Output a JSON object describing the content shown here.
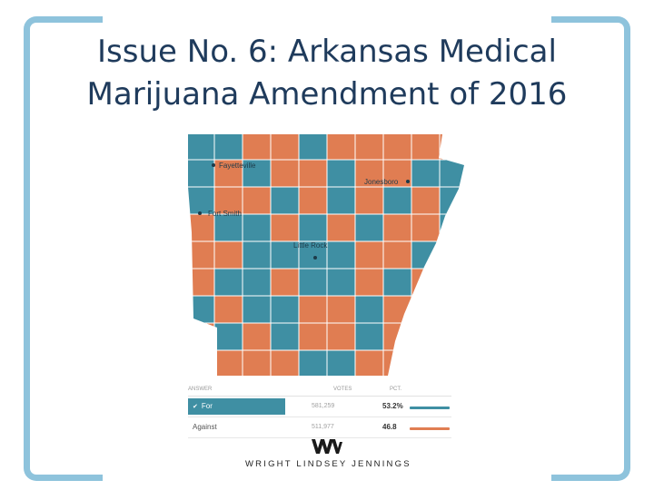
{
  "slide": {
    "title_line1": "Issue No. 6: Arkansas Medical",
    "title_line2": "Marijuana Amendment of 2016"
  },
  "map": {
    "colors": {
      "for": "#3f8fa3",
      "against": "#e07d52",
      "border": "#ffffff"
    },
    "cities": [
      {
        "name": "Fayetteville",
        "label_side": "right"
      },
      {
        "name": "Jonesboro",
        "label_side": "left"
      },
      {
        "name": "Fort Smith",
        "label_side": "right"
      },
      {
        "name": "Little Rock",
        "label_side": "above"
      }
    ]
  },
  "results": {
    "headers": {
      "answer": "ANSWER",
      "votes": "VOTES",
      "pct": "PCT."
    },
    "rows": [
      {
        "answer": "For",
        "votes": "581,259",
        "pct": "53.2%",
        "winner": true,
        "color": "#3f8fa3"
      },
      {
        "answer": "Against",
        "votes": "511,977",
        "pct": "46.8",
        "winner": false,
        "color": "#e07d52"
      }
    ]
  },
  "logo": {
    "mark": "WLJ",
    "text": "WRIGHT LINDSEY JENNINGS"
  }
}
